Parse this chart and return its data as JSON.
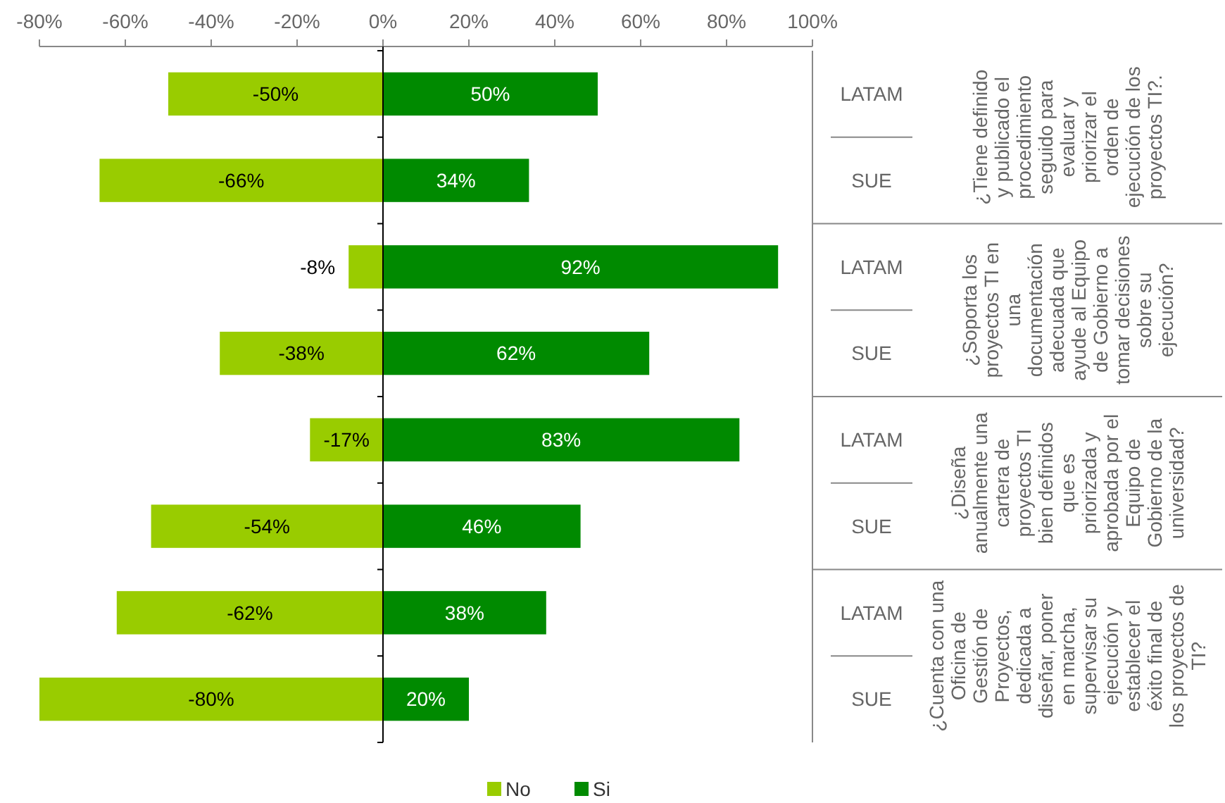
{
  "chart_data": {
    "type": "bar",
    "orientation": "horizontal",
    "stacked": true,
    "categories": [
      "LATAM",
      "SUE",
      "LATAM",
      "SUE",
      "LATAM",
      "SUE",
      "LATAM",
      "SUE"
    ],
    "series": [
      {
        "name": "No",
        "color": "#99cc00",
        "values": [
          -50,
          -66,
          -8,
          -38,
          -17,
          -54,
          -62,
          -80
        ],
        "value_labels": [
          "-50%",
          "-66%",
          "-8%",
          "-38%",
          "-17%",
          "-54%",
          "-62%",
          "-80%"
        ]
      },
      {
        "name": "Si",
        "color": "#008a00",
        "values": [
          50,
          34,
          92,
          62,
          83,
          46,
          38,
          20
        ],
        "value_labels": [
          "50%",
          "34%",
          "92%",
          "62%",
          "83%",
          "46%",
          "38%",
          "20%"
        ]
      }
    ],
    "xlim": [
      -80,
      100
    ],
    "xticks": [
      {
        "value": -80,
        "label": "-80%"
      },
      {
        "value": -60,
        "label": "-60%"
      },
      {
        "value": -40,
        "label": "-40%"
      },
      {
        "value": -20,
        "label": "-20%"
      },
      {
        "value": 0,
        "label": "0%"
      },
      {
        "value": 20,
        "label": "20%"
      },
      {
        "value": 40,
        "label": "40%"
      },
      {
        "value": 60,
        "label": "60%"
      },
      {
        "value": 80,
        "label": "80%"
      },
      {
        "value": 100,
        "label": "100%"
      }
    ],
    "annotations": [
      "¿Tiene definido y publicado el procedimiento seguido para evaluar y priorizar el orden de ejecución de los proyectos TI?.",
      "¿Soporta los proyectos TI en una documentación adecuada que ayude al Equipo de Gobierno a tomar decisiones sobre su ejecución?",
      "¿Diseña anualmente una cartera de proyectos TI bien definidos que es priorizada y aprobada por el Equipo de Gobierno de la universidad?",
      "¿Cuenta con una Oficina de Gestión de Proyectos, dedicada a diseñar, poner en marcha, supervisar su ejecución y establecer el éxito final de los proyectos de TI?"
    ],
    "legend": "bottom"
  }
}
